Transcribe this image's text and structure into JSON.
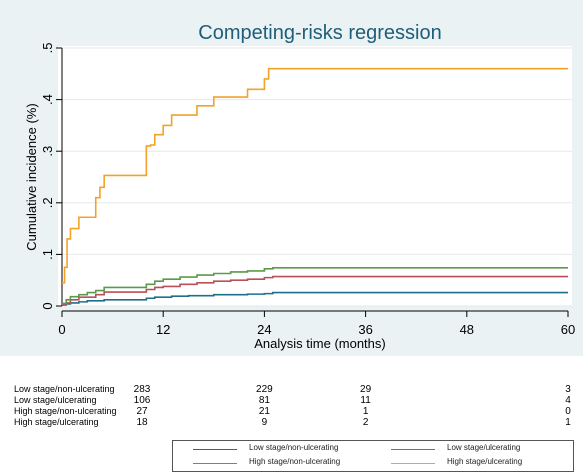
{
  "chart_data": {
    "type": "line",
    "title": "Competing-risks regression",
    "xlabel": "Analysis time (months)",
    "ylabel": "Cumulative incidence (%)",
    "xlim": [
      0,
      60
    ],
    "ylim": [
      0,
      0.5
    ],
    "x_ticks": [
      0,
      12,
      24,
      36,
      48,
      60
    ],
    "y_ticks": [
      0,
      0.1,
      0.2,
      0.3,
      0.4,
      0.5
    ],
    "y_tick_labels": [
      "0",
      ".1",
      ".2",
      ".3",
      ".4",
      ".5"
    ],
    "grid": "horizontal",
    "step": true,
    "series": [
      {
        "name": "Low stage/non-ulcerating",
        "color": "#1f6f8b",
        "x": [
          0,
          0.5,
          1,
          2,
          3,
          5,
          10,
          11,
          13,
          15,
          18,
          22,
          24,
          25,
          60
        ],
        "y": [
          0.002,
          0.004,
          0.006,
          0.008,
          0.01,
          0.012,
          0.015,
          0.017,
          0.019,
          0.02,
          0.022,
          0.023,
          0.024,
          0.026,
          0.026
        ]
      },
      {
        "name": "Low stage/ulcerating",
        "color": "#b8505a",
        "x": [
          0,
          0.5,
          1,
          2,
          4,
          5,
          10,
          11,
          12,
          14,
          16,
          18,
          20,
          22,
          24,
          25,
          60
        ],
        "y": [
          0.003,
          0.006,
          0.012,
          0.017,
          0.022,
          0.027,
          0.032,
          0.036,
          0.038,
          0.042,
          0.045,
          0.048,
          0.05,
          0.052,
          0.055,
          0.057,
          0.057
        ]
      },
      {
        "name": "High stage/non-ulcerating",
        "color": "#5a9a4a",
        "x": [
          0,
          0.5,
          1,
          2,
          3,
          4,
          5,
          10,
          11,
          12,
          14,
          16,
          18,
          20,
          22,
          24,
          25,
          60
        ],
        "y": [
          0.005,
          0.012,
          0.018,
          0.022,
          0.026,
          0.03,
          0.036,
          0.042,
          0.048,
          0.052,
          0.056,
          0.06,
          0.063,
          0.066,
          0.068,
          0.072,
          0.074,
          0.074
        ]
      },
      {
        "name": "High stage/ulcerating",
        "color": "#f4a12a",
        "x": [
          0,
          0.3,
          0.6,
          1,
          1.2,
          2,
          3,
          4,
          4.5,
          5,
          10,
          10.5,
          11,
          12,
          13,
          14,
          16,
          18,
          22,
          24,
          24.5,
          60
        ],
        "y": [
          0.045,
          0.075,
          0.13,
          0.15,
          0.15,
          0.172,
          0.172,
          0.21,
          0.23,
          0.253,
          0.31,
          0.312,
          0.332,
          0.35,
          0.37,
          0.37,
          0.388,
          0.405,
          0.42,
          0.44,
          0.46,
          0.46
        ]
      }
    ]
  },
  "risk_table": {
    "times": [
      0,
      24,
      36,
      60
    ],
    "rows": [
      {
        "label": "Low stage/non-ulcerating",
        "values": [
          "283",
          "229",
          "29",
          "3"
        ]
      },
      {
        "label": "Low stage/ulcerating",
        "values": [
          "106",
          "81",
          "11",
          "4"
        ]
      },
      {
        "label": "High stage/non-ulcerating",
        "values": [
          "27",
          "21",
          "1",
          "0"
        ]
      },
      {
        "label": "High stage/ulcerating",
        "values": [
          "18",
          "9",
          "2",
          "1"
        ]
      }
    ]
  }
}
